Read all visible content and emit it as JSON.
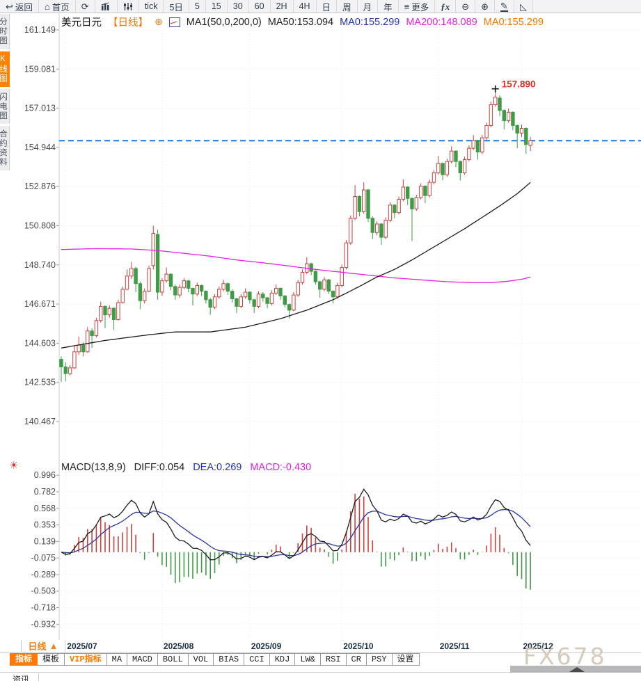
{
  "toolbar": {
    "items": [
      {
        "icon": "back-arrow-icon",
        "label": "返回"
      },
      {
        "icon": "home-icon",
        "label": "首页"
      },
      {
        "icon": "refresh-icon",
        "label": ""
      },
      {
        "icon": "kline-chart-icon",
        "label": ""
      },
      {
        "icon": "indicator-sliders-icon",
        "label": ""
      },
      {
        "icon": "",
        "label": "tick"
      },
      {
        "icon": "",
        "label": "5日"
      },
      {
        "icon": "",
        "label": "5"
      },
      {
        "icon": "",
        "label": "15"
      },
      {
        "icon": "",
        "label": "30"
      },
      {
        "icon": "",
        "label": "60"
      },
      {
        "icon": "",
        "label": "2H"
      },
      {
        "icon": "",
        "label": "4H"
      },
      {
        "icon": "",
        "label": "日"
      },
      {
        "icon": "",
        "label": "周"
      },
      {
        "icon": "",
        "label": "月"
      },
      {
        "icon": "",
        "label": "年"
      },
      {
        "icon": "menu-icon",
        "label": "更多"
      },
      {
        "icon": "fx-function-icon",
        "label": ""
      },
      {
        "icon": "zoom-out-icon",
        "label": ""
      },
      {
        "icon": "zoom-in-icon",
        "label": ""
      },
      {
        "icon": "pencil-draw-icon",
        "label": ""
      },
      {
        "icon": "angle-measure-icon",
        "label": ""
      }
    ]
  },
  "sidebar": {
    "items": [
      {
        "label": "分时图",
        "selected": false
      },
      {
        "label": "K线图",
        "selected": true
      },
      {
        "label": "闪电图",
        "selected": false
      },
      {
        "label": "合约资料",
        "selected": false
      }
    ]
  },
  "chart_header": {
    "symbol": "美元日元",
    "period": "【日线】",
    "plus": "⊕",
    "ma_settings": "MA1(50,0,200,0)",
    "ma50": "MA50:153.094",
    "ma0_blue": "MA0:155.299",
    "ma200": "MA200:148.089",
    "ma0_orange": "MA0:155.299"
  },
  "macd_header": {
    "title": "MACD(13,8,9)",
    "diff": "DIFF:0.054",
    "dea": "DEA:0.269",
    "macd": "MACD:-0.430"
  },
  "peak_label": "157.890",
  "bottom": {
    "period_label": "日线",
    "period_arrow": "▲",
    "tabs": [
      {
        "label": "指标",
        "state": "selected"
      },
      {
        "label": "模板",
        "state": ""
      },
      {
        "label": "VIP指标",
        "state": "vip"
      },
      {
        "label": "MA",
        "state": ""
      },
      {
        "label": "MACD",
        "state": ""
      },
      {
        "label": "BOLL",
        "state": ""
      },
      {
        "label": "VOL",
        "state": ""
      },
      {
        "label": "BIAS",
        "state": ""
      },
      {
        "label": "CCI",
        "state": ""
      },
      {
        "label": "KDJ",
        "state": ""
      },
      {
        "label": "LW&",
        "state": ""
      },
      {
        "label": "RSI",
        "state": ""
      },
      {
        "label": "CR",
        "state": ""
      },
      {
        "label": "PSY",
        "state": ""
      },
      {
        "label": "设置",
        "state": ""
      }
    ],
    "watermark": "FX678",
    "news_label": "资讯"
  },
  "chart_data": {
    "type": "candlestick",
    "title": "美元日元 日线 (USD/JPY daily)",
    "y_axis_labels": [
      "161.149",
      "159.081",
      "157.013",
      "154.944",
      "152.876",
      "150.808",
      "148.740",
      "146.671",
      "144.603",
      "142.535",
      "140.467"
    ],
    "macd_axis_labels": [
      "0.996",
      "0.782",
      "0.568",
      "0.353",
      "0.139",
      "-0.075",
      "-0.289",
      "-0.503",
      "-0.718",
      "-0.932"
    ],
    "x_axis_labels": [
      "2025/07",
      "2025/08",
      "2025/09",
      "2025/10",
      "2025/11",
      "2025/12"
    ],
    "month_tick_indices": [
      1,
      23,
      43,
      64,
      86,
      105
    ],
    "current_price": 155.299,
    "peak": {
      "index": 99,
      "price": 157.89
    },
    "colors": {
      "up": "#c9413f",
      "down": "#3f9b47",
      "ma50": "#1b1b1b",
      "ma200": "#e81ee8",
      "diff": "#1b1b1b",
      "dea": "#2b35a0",
      "price_line": "#1479e8",
      "peak_text": "#d93025",
      "grid": "#f2e0ec",
      "axis_text": "#4a4a4a"
    },
    "ma50_points": [
      [
        0,
        144.35
      ],
      [
        10,
        144.75
      ],
      [
        20,
        145.05
      ],
      [
        26,
        145.2
      ],
      [
        34,
        145.2
      ],
      [
        42,
        145.45
      ],
      [
        50,
        145.9
      ],
      [
        56,
        146.35
      ],
      [
        62,
        146.9
      ],
      [
        68,
        147.6
      ],
      [
        72,
        148.1
      ],
      [
        76,
        148.5
      ],
      [
        80,
        149.0
      ],
      [
        84,
        149.55
      ],
      [
        88,
        150.1
      ],
      [
        92,
        150.65
      ],
      [
        96,
        151.25
      ],
      [
        100,
        151.85
      ],
      [
        104,
        152.5
      ],
      [
        107,
        153.094
      ]
    ],
    "ma200_points": [
      [
        0,
        149.55
      ],
      [
        8,
        149.6
      ],
      [
        16,
        149.58
      ],
      [
        22,
        149.5
      ],
      [
        28,
        149.35
      ],
      [
        34,
        149.2
      ],
      [
        40,
        149.0
      ],
      [
        46,
        148.85
      ],
      [
        52,
        148.68
      ],
      [
        58,
        148.5
      ],
      [
        64,
        148.35
      ],
      [
        70,
        148.2
      ],
      [
        76,
        148.05
      ],
      [
        82,
        147.95
      ],
      [
        88,
        147.85
      ],
      [
        94,
        147.8
      ],
      [
        98,
        147.8
      ],
      [
        102,
        147.88
      ],
      [
        105,
        147.98
      ],
      [
        107,
        148.089
      ]
    ],
    "candles": [
      [
        143.75,
        143.9,
        142.55,
        143.35
      ],
      [
        143.35,
        143.6,
        142.6,
        143.0
      ],
      [
        143.0,
        143.45,
        142.9,
        143.3
      ],
      [
        143.3,
        144.5,
        143.25,
        144.15
      ],
      [
        144.15,
        144.95,
        144.0,
        144.5
      ],
      [
        144.5,
        144.65,
        143.9,
        144.15
      ],
      [
        144.15,
        145.45,
        144.1,
        145.25
      ],
      [
        145.25,
        145.4,
        144.35,
        145.0
      ],
      [
        145.0,
        145.95,
        144.9,
        145.8
      ],
      [
        145.8,
        146.8,
        145.7,
        146.55
      ],
      [
        146.55,
        146.6,
        145.4,
        146.1
      ],
      [
        146.1,
        146.6,
        145.95,
        146.45
      ],
      [
        146.45,
        146.5,
        145.3,
        145.85
      ],
      [
        145.85,
        146.9,
        145.8,
        146.75
      ],
      [
        146.75,
        147.6,
        146.7,
        147.45
      ],
      [
        147.45,
        148.5,
        147.4,
        148.15
      ],
      [
        148.15,
        148.9,
        148.0,
        148.55
      ],
      [
        148.55,
        148.65,
        147.3,
        147.75
      ],
      [
        147.75,
        147.85,
        146.4,
        146.85
      ],
      [
        146.85,
        147.5,
        146.7,
        147.35
      ],
      [
        147.35,
        148.7,
        147.3,
        148.55
      ],
      [
        148.7,
        150.81,
        148.5,
        150.4
      ],
      [
        150.35,
        150.6,
        146.9,
        147.3
      ],
      [
        147.3,
        148.05,
        147.1,
        147.9
      ],
      [
        147.9,
        148.6,
        147.8,
        148.25
      ],
      [
        148.25,
        148.3,
        147.4,
        147.6
      ],
      [
        147.6,
        147.7,
        146.9,
        147.15
      ],
      [
        147.15,
        147.7,
        147.0,
        147.55
      ],
      [
        147.55,
        148.05,
        147.45,
        147.9
      ],
      [
        147.9,
        147.95,
        147.3,
        147.5
      ],
      [
        147.5,
        147.55,
        146.6,
        147.2
      ],
      [
        147.2,
        147.8,
        147.1,
        147.65
      ],
      [
        147.65,
        147.7,
        147.1,
        147.35
      ],
      [
        147.35,
        147.4,
        146.7,
        146.9
      ],
      [
        146.9,
        147.0,
        146.1,
        146.5
      ],
      [
        146.5,
        147.2,
        146.4,
        147.05
      ],
      [
        147.05,
        147.6,
        146.95,
        147.45
      ],
      [
        147.45,
        147.95,
        147.35,
        147.75
      ],
      [
        147.75,
        147.8,
        147.15,
        147.35
      ],
      [
        147.35,
        147.45,
        146.75,
        146.95
      ],
      [
        146.95,
        147.0,
        146.2,
        146.55
      ],
      [
        146.55,
        147.2,
        146.45,
        147.05
      ],
      [
        147.05,
        147.5,
        146.95,
        147.3
      ],
      [
        147.3,
        147.35,
        146.7,
        146.9
      ],
      [
        146.9,
        146.95,
        146.2,
        146.55
      ],
      [
        146.55,
        147.35,
        146.45,
        147.2
      ],
      [
        147.2,
        147.3,
        146.8,
        147.0
      ],
      [
        147.0,
        147.05,
        146.45,
        146.7
      ],
      [
        146.7,
        147.4,
        146.6,
        147.25
      ],
      [
        147.25,
        147.7,
        147.15,
        147.5
      ],
      [
        147.5,
        147.55,
        146.9,
        147.1
      ],
      [
        147.1,
        147.15,
        146.5,
        146.65
      ],
      [
        146.65,
        146.7,
        145.9,
        146.35
      ],
      [
        146.35,
        147.3,
        146.3,
        147.15
      ],
      [
        147.15,
        147.95,
        147.05,
        147.8
      ],
      [
        147.8,
        148.5,
        147.7,
        148.35
      ],
      [
        148.35,
        149.15,
        148.25,
        148.8
      ],
      [
        148.8,
        148.85,
        148.2,
        148.4
      ],
      [
        148.4,
        148.45,
        147.7,
        147.85
      ],
      [
        147.85,
        147.9,
        147.0,
        147.45
      ],
      [
        147.45,
        148.1,
        147.35,
        147.95
      ],
      [
        147.95,
        148.0,
        147.2,
        147.35
      ],
      [
        147.35,
        147.4,
        146.7,
        147.05
      ],
      [
        147.05,
        147.8,
        146.95,
        147.65
      ],
      [
        147.65,
        148.75,
        147.55,
        148.6
      ],
      [
        148.6,
        150.05,
        148.5,
        149.9
      ],
      [
        149.9,
        151.35,
        149.8,
        151.2
      ],
      [
        151.2,
        152.95,
        151.1,
        152.35
      ],
      [
        152.35,
        152.4,
        151.3,
        151.55
      ],
      [
        151.55,
        153.1,
        151.45,
        152.7
      ],
      [
        152.7,
        152.75,
        151.0,
        151.2
      ],
      [
        151.2,
        151.3,
        150.1,
        150.45
      ],
      [
        150.45,
        151.05,
        150.3,
        150.9
      ],
      [
        150.9,
        150.95,
        149.8,
        150.2
      ],
      [
        150.2,
        151.25,
        150.1,
        151.1
      ],
      [
        151.1,
        152.05,
        151.0,
        151.9
      ],
      [
        151.9,
        151.95,
        151.2,
        151.5
      ],
      [
        151.5,
        152.35,
        151.4,
        152.2
      ],
      [
        152.2,
        153.25,
        152.1,
        152.85
      ],
      [
        152.85,
        152.9,
        151.9,
        152.25
      ],
      [
        152.25,
        152.3,
        150.0,
        151.7
      ],
      [
        151.7,
        152.45,
        151.6,
        152.3
      ],
      [
        152.3,
        153.05,
        152.2,
        152.9
      ],
      [
        152.9,
        152.95,
        152.0,
        152.4
      ],
      [
        152.4,
        153.25,
        152.3,
        153.1
      ],
      [
        153.1,
        153.75,
        153.0,
        153.6
      ],
      [
        153.6,
        154.5,
        153.5,
        154.1
      ],
      [
        154.1,
        154.15,
        153.2,
        153.5
      ],
      [
        153.5,
        154.35,
        153.4,
        154.2
      ],
      [
        154.2,
        155.0,
        154.1,
        154.75
      ],
      [
        154.75,
        154.8,
        153.9,
        154.2
      ],
      [
        154.2,
        154.25,
        153.2,
        153.6
      ],
      [
        153.6,
        154.45,
        153.5,
        154.3
      ],
      [
        154.3,
        155.05,
        154.2,
        154.9
      ],
      [
        154.9,
        155.6,
        154.8,
        155.3
      ],
      [
        155.3,
        155.35,
        154.3,
        154.7
      ],
      [
        154.7,
        155.6,
        154.6,
        155.45
      ],
      [
        155.45,
        156.25,
        155.35,
        156.1
      ],
      [
        156.1,
        157.35,
        156.0,
        157.2
      ],
      [
        157.2,
        157.89,
        157.1,
        157.6
      ],
      [
        157.55,
        157.7,
        156.6,
        156.9
      ],
      [
        156.9,
        156.95,
        155.9,
        156.35
      ],
      [
        156.35,
        157.0,
        156.25,
        156.8
      ],
      [
        156.8,
        156.85,
        155.85,
        156.1
      ],
      [
        156.1,
        156.15,
        154.9,
        155.7
      ],
      [
        155.7,
        156.15,
        155.5,
        155.95
      ],
      [
        155.95,
        156.0,
        154.6,
        155.1
      ],
      [
        155.05,
        155.5,
        154.75,
        155.299
      ]
    ]
  }
}
